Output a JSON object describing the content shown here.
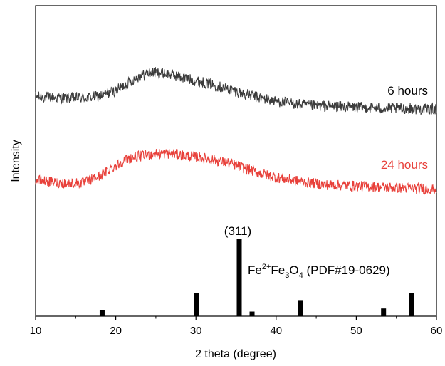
{
  "chart_data": {
    "type": "line",
    "title": "",
    "xlabel": "2 theta (degree)",
    "ylabel": "Intensity",
    "xlim": [
      10,
      60
    ],
    "xticks": [
      "10",
      "20",
      "30",
      "40",
      "50",
      "60"
    ],
    "y_ticks_shown": false,
    "grid": false,
    "legend": "none",
    "series": [
      {
        "name": "6 hours",
        "color": "#3c3c3c",
        "x": [
          10,
          12,
          14,
          16,
          18,
          20,
          21,
          22,
          23,
          24,
          25,
          26,
          27,
          28,
          30,
          32,
          34,
          36,
          38,
          40,
          42,
          44,
          46,
          48,
          50,
          52,
          54,
          56,
          58,
          60
        ],
        "y": [
          0.42,
          0.41,
          0.4,
          0.4,
          0.43,
          0.52,
          0.6,
          0.68,
          0.76,
          0.8,
          0.82,
          0.8,
          0.78,
          0.74,
          0.68,
          0.62,
          0.55,
          0.47,
          0.4,
          0.35,
          0.31,
          0.28,
          0.27,
          0.26,
          0.25,
          0.24,
          0.23,
          0.23,
          0.22,
          0.22
        ]
      },
      {
        "name": "24 hours",
        "color": "#e8403a",
        "x": [
          10,
          12,
          14,
          16,
          18,
          20,
          21,
          22,
          23,
          24,
          25,
          26,
          27,
          28,
          30,
          32,
          34,
          36,
          38,
          40,
          42,
          44,
          46,
          48,
          50,
          52,
          54,
          56,
          58,
          60
        ],
        "y": [
          0.26,
          0.23,
          0.21,
          0.22,
          0.32,
          0.48,
          0.55,
          0.6,
          0.62,
          0.64,
          0.66,
          0.66,
          0.66,
          0.64,
          0.61,
          0.57,
          0.52,
          0.44,
          0.36,
          0.3,
          0.26,
          0.22,
          0.19,
          0.18,
          0.17,
          0.16,
          0.15,
          0.14,
          0.13,
          0.12
        ]
      },
      {
        "name": "Fe2+Fe3O4 (PDF#19-0629)",
        "type": "bar",
        "color": "#000000",
        "x": [
          18.3,
          30.1,
          35.4,
          37.0,
          43.0,
          53.4,
          56.9
        ],
        "y": [
          8,
          30,
          100,
          6,
          20,
          10,
          30
        ]
      }
    ],
    "annotations": [
      {
        "text": "6 hours",
        "color": "#000000"
      },
      {
        "text": "24 hours",
        "color": "#e8403a"
      },
      {
        "text": "(311)",
        "color": "#000000"
      },
      {
        "text_parts": [
          "Fe",
          "2+",
          "Fe",
          "3",
          "O",
          "4",
          " (PDF#19-0629)"
        ],
        "color": "#000000"
      }
    ]
  }
}
